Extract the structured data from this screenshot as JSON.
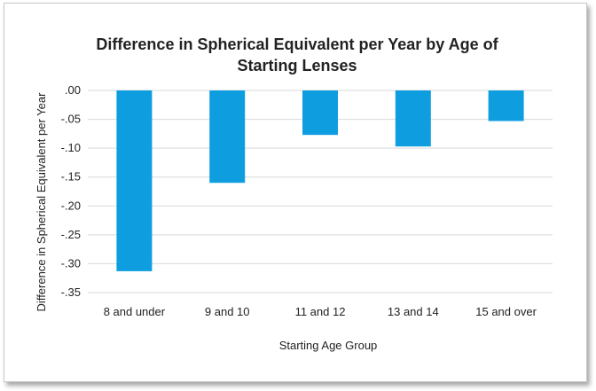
{
  "chart_data": {
    "type": "bar",
    "title": [
      "Difference in Spherical Equivalent per Year by Age of",
      "Starting Lenses"
    ],
    "xlabel": "Starting Age Group",
    "ylabel": "Difference in Spherical Equivalent per Year",
    "categories": [
      "8 and under",
      "9 and 10",
      "11 and 12",
      "13 and 14",
      "15 and over"
    ],
    "values": [
      -0.313,
      -0.16,
      -0.077,
      -0.097,
      -0.053
    ],
    "ylim": [
      -0.35,
      0.0
    ],
    "yticks": [
      0.0,
      -0.05,
      -0.1,
      -0.15,
      -0.2,
      -0.25,
      -0.3,
      -0.35
    ],
    "ytick_labels": [
      ".00",
      "-.05",
      "-.10",
      "-.15",
      "-.20",
      "-.25",
      "-.30",
      "-.35"
    ],
    "grid": true,
    "legend": "none",
    "bar_color": "#0e9ee0"
  }
}
